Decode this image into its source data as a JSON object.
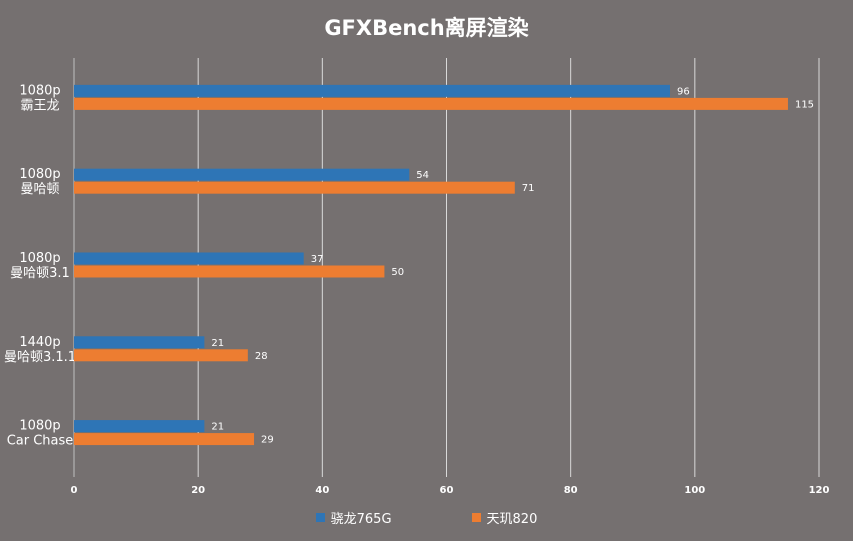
{
  "chart_data": {
    "type": "bar",
    "orientation": "horizontal",
    "title": "GFXBench离屏渲染",
    "categories": [
      [
        "1080p",
        "霸王龙"
      ],
      [
        "1080p",
        "曼哈顿"
      ],
      [
        "1080p",
        "曼哈顿3.1"
      ],
      [
        "1440p",
        "曼哈顿3.1.1"
      ],
      [
        "1080p",
        "Car Chase"
      ]
    ],
    "series": [
      {
        "name": "骁龙765G",
        "color": "#2e75b6",
        "values": [
          96,
          54,
          37,
          21,
          21
        ]
      },
      {
        "name": "天玑820",
        "color": "#ed7d31",
        "values": [
          115,
          71,
          50,
          28,
          29
        ]
      }
    ],
    "xlim": [
      0,
      120
    ],
    "xticks": [
      "0",
      "20",
      "40",
      "60",
      "80",
      "100",
      "120"
    ],
    "grid": true,
    "legend_position": "bottom"
  }
}
